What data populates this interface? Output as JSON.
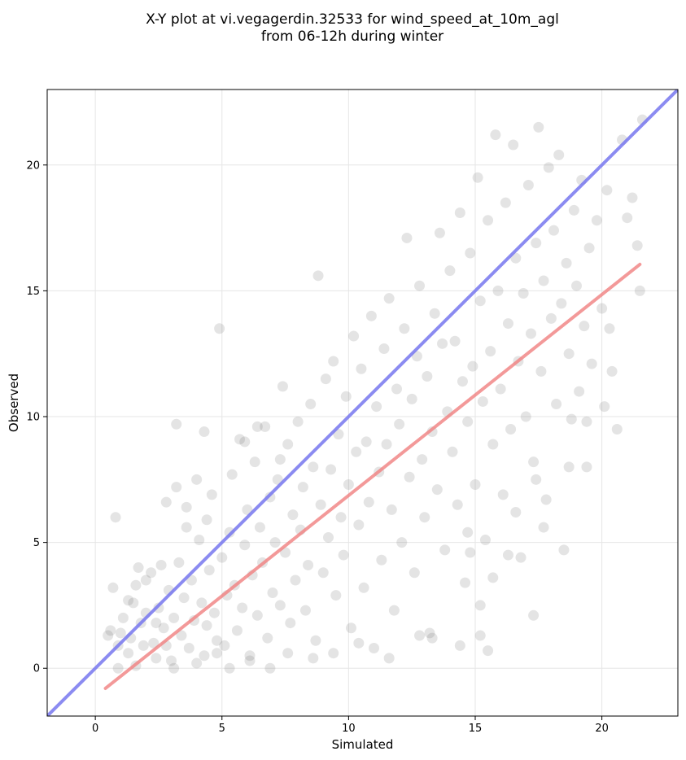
{
  "chart_data": {
    "type": "scatter",
    "title": "X-Y plot at vi.vegagerdin.32533 for wind_speed_at_10m_agl",
    "subtitle": "from 06-12h during winter",
    "xlabel": "Simulated",
    "ylabel": "Observed",
    "xlim": [
      -1.9,
      23.0
    ],
    "ylim": [
      -1.9,
      23.0
    ],
    "xticks": [
      0,
      5,
      10,
      15,
      20
    ],
    "yticks": [
      0,
      5,
      10,
      15,
      20
    ],
    "grid": true,
    "point_color": "#555555",
    "identity_line": {
      "x": [
        -1.9,
        23.0
      ],
      "y": [
        -1.9,
        23.0
      ],
      "color": "#7777ee"
    },
    "fit_line": {
      "x": [
        0.4,
        21.5
      ],
      "y": [
        -0.8,
        16.05
      ],
      "color": "#f08080"
    },
    "series": [
      {
        "values": [
          [
            0.8,
            6.0
          ],
          [
            0.7,
            3.2
          ],
          [
            0.6,
            1.5
          ],
          [
            0.9,
            0.9
          ],
          [
            1.0,
            1.4
          ],
          [
            1.1,
            2.0
          ],
          [
            0.5,
            1.3
          ],
          [
            1.3,
            0.6
          ],
          [
            1.4,
            1.2
          ],
          [
            1.5,
            2.6
          ],
          [
            1.6,
            3.3
          ],
          [
            1.7,
            4.0
          ],
          [
            1.8,
            1.8
          ],
          [
            1.9,
            0.9
          ],
          [
            2.0,
            2.2
          ],
          [
            2.2,
            3.8
          ],
          [
            2.3,
            1.0
          ],
          [
            2.4,
            0.4
          ],
          [
            2.5,
            2.4
          ],
          [
            2.6,
            4.1
          ],
          [
            2.7,
            1.6
          ],
          [
            2.8,
            0.9
          ],
          [
            2.9,
            3.1
          ],
          [
            3.0,
            0.3
          ],
          [
            3.1,
            2.0
          ],
          [
            3.2,
            7.2
          ],
          [
            3.3,
            4.2
          ],
          [
            3.4,
            1.3
          ],
          [
            3.5,
            2.8
          ],
          [
            3.6,
            5.6
          ],
          [
            3.7,
            0.8
          ],
          [
            3.8,
            3.5
          ],
          [
            3.9,
            1.9
          ],
          [
            4.0,
            7.5
          ],
          [
            4.1,
            5.1
          ],
          [
            4.2,
            2.6
          ],
          [
            4.3,
            0.5
          ],
          [
            4.4,
            1.7
          ],
          [
            4.5,
            3.9
          ],
          [
            4.6,
            6.9
          ],
          [
            4.7,
            2.2
          ],
          [
            4.8,
            1.1
          ],
          [
            4.9,
            13.5
          ],
          [
            5.0,
            4.4
          ],
          [
            5.1,
            0.9
          ],
          [
            5.2,
            2.9
          ],
          [
            5.3,
            5.4
          ],
          [
            5.4,
            7.7
          ],
          [
            5.5,
            3.3
          ],
          [
            5.6,
            1.5
          ],
          [
            5.7,
            9.1
          ],
          [
            5.8,
            2.4
          ],
          [
            5.9,
            4.9
          ],
          [
            6.0,
            6.3
          ],
          [
            6.1,
            0.5
          ],
          [
            6.2,
            3.7
          ],
          [
            6.3,
            8.2
          ],
          [
            6.4,
            2.1
          ],
          [
            6.5,
            5.6
          ],
          [
            6.6,
            4.2
          ],
          [
            6.7,
            9.6
          ],
          [
            6.8,
            1.2
          ],
          [
            6.9,
            6.8
          ],
          [
            7.0,
            3.0
          ],
          [
            7.1,
            5.0
          ],
          [
            7.2,
            7.5
          ],
          [
            7.3,
            2.5
          ],
          [
            7.4,
            11.2
          ],
          [
            7.5,
            4.6
          ],
          [
            7.6,
            8.9
          ],
          [
            7.7,
            1.8
          ],
          [
            7.8,
            6.1
          ],
          [
            7.9,
            3.5
          ],
          [
            8.0,
            9.8
          ],
          [
            8.1,
            5.5
          ],
          [
            8.2,
            7.2
          ],
          [
            8.3,
            2.3
          ],
          [
            8.4,
            4.1
          ],
          [
            8.5,
            10.5
          ],
          [
            8.6,
            8.0
          ],
          [
            8.7,
            1.1
          ],
          [
            8.8,
            15.6
          ],
          [
            8.9,
            6.5
          ],
          [
            9.0,
            3.8
          ],
          [
            9.1,
            11.5
          ],
          [
            9.2,
            5.2
          ],
          [
            9.3,
            7.9
          ],
          [
            9.4,
            12.2
          ],
          [
            9.5,
            2.9
          ],
          [
            9.6,
            9.3
          ],
          [
            9.7,
            6.0
          ],
          [
            9.8,
            4.5
          ],
          [
            9.9,
            10.8
          ],
          [
            10.0,
            7.3
          ],
          [
            10.1,
            1.6
          ],
          [
            10.2,
            13.2
          ],
          [
            10.3,
            8.6
          ],
          [
            10.4,
            5.7
          ],
          [
            10.5,
            11.9
          ],
          [
            10.6,
            3.2
          ],
          [
            10.7,
            9.0
          ],
          [
            10.8,
            6.6
          ],
          [
            10.9,
            14.0
          ],
          [
            11.0,
            0.8
          ],
          [
            11.1,
            10.4
          ],
          [
            11.2,
            7.8
          ],
          [
            11.3,
            4.3
          ],
          [
            11.4,
            12.7
          ],
          [
            11.5,
            8.9
          ],
          [
            11.6,
            14.7
          ],
          [
            11.7,
            6.3
          ],
          [
            11.8,
            2.3
          ],
          [
            11.9,
            11.1
          ],
          [
            12.0,
            9.7
          ],
          [
            12.1,
            5.0
          ],
          [
            12.2,
            13.5
          ],
          [
            12.3,
            17.1
          ],
          [
            12.4,
            7.6
          ],
          [
            12.5,
            10.7
          ],
          [
            12.6,
            3.8
          ],
          [
            12.7,
            12.4
          ],
          [
            12.8,
            15.2
          ],
          [
            12.9,
            8.3
          ],
          [
            13.0,
            6.0
          ],
          [
            13.1,
            11.6
          ],
          [
            13.2,
            1.4
          ],
          [
            13.3,
            9.4
          ],
          [
            13.4,
            14.1
          ],
          [
            13.5,
            7.1
          ],
          [
            13.6,
            17.3
          ],
          [
            13.7,
            12.9
          ],
          [
            13.8,
            4.7
          ],
          [
            13.9,
            10.2
          ],
          [
            14.0,
            15.8
          ],
          [
            14.1,
            8.6
          ],
          [
            14.2,
            13.0
          ],
          [
            14.3,
            6.5
          ],
          [
            14.4,
            18.1
          ],
          [
            14.5,
            11.4
          ],
          [
            14.6,
            3.4
          ],
          [
            14.7,
            9.8
          ],
          [
            14.8,
            16.5
          ],
          [
            14.9,
            12.0
          ],
          [
            15.0,
            7.3
          ],
          [
            15.1,
            19.5
          ],
          [
            15.2,
            14.6
          ],
          [
            15.3,
            10.6
          ],
          [
            15.4,
            5.1
          ],
          [
            15.5,
            17.8
          ],
          [
            15.6,
            12.6
          ],
          [
            15.7,
            8.9
          ],
          [
            15.8,
            21.2
          ],
          [
            15.9,
            15.0
          ],
          [
            16.0,
            11.1
          ],
          [
            16.1,
            6.9
          ],
          [
            16.2,
            18.5
          ],
          [
            16.3,
            13.7
          ],
          [
            16.4,
            9.5
          ],
          [
            16.5,
            20.8
          ],
          [
            16.6,
            16.3
          ],
          [
            16.7,
            12.2
          ],
          [
            16.8,
            4.4
          ],
          [
            16.9,
            14.9
          ],
          [
            17.0,
            10.0
          ],
          [
            17.1,
            19.2
          ],
          [
            17.2,
            13.3
          ],
          [
            17.3,
            8.2
          ],
          [
            17.4,
            16.9
          ],
          [
            17.5,
            21.5
          ],
          [
            17.6,
            11.8
          ],
          [
            17.7,
            15.4
          ],
          [
            17.8,
            6.7
          ],
          [
            17.9,
            19.9
          ],
          [
            18.0,
            13.9
          ],
          [
            18.1,
            17.4
          ],
          [
            18.2,
            10.5
          ],
          [
            18.3,
            20.4
          ],
          [
            18.4,
            14.5
          ],
          [
            18.5,
            4.7
          ],
          [
            18.6,
            16.1
          ],
          [
            18.7,
            12.5
          ],
          [
            18.8,
            9.9
          ],
          [
            18.9,
            18.2
          ],
          [
            19.0,
            15.2
          ],
          [
            19.1,
            11.0
          ],
          [
            19.2,
            19.4
          ],
          [
            19.3,
            13.6
          ],
          [
            19.4,
            8.0
          ],
          [
            19.5,
            16.7
          ],
          [
            19.6,
            12.1
          ],
          [
            19.8,
            17.8
          ],
          [
            20.0,
            14.3
          ],
          [
            20.1,
            10.4
          ],
          [
            20.2,
            19.0
          ],
          [
            20.4,
            11.8
          ],
          [
            20.6,
            9.5
          ],
          [
            20.8,
            21.0
          ],
          [
            21.0,
            17.9
          ],
          [
            21.2,
            18.7
          ],
          [
            21.4,
            16.8
          ],
          [
            21.5,
            15.0
          ],
          [
            21.6,
            21.8
          ],
          [
            20.3,
            13.5
          ],
          [
            3.2,
            9.7
          ],
          [
            4.3,
            9.4
          ],
          [
            2.0,
            3.5
          ],
          [
            5.9,
            9.0
          ],
          [
            6.4,
            9.6
          ],
          [
            7.3,
            8.3
          ],
          [
            2.8,
            6.6
          ],
          [
            3.6,
            6.4
          ],
          [
            4.4,
            5.9
          ],
          [
            1.3,
            2.7
          ],
          [
            0.9,
            0.0
          ],
          [
            1.6,
            0.1
          ],
          [
            2.4,
            1.8
          ],
          [
            3.1,
            0.0
          ],
          [
            4.0,
            0.2
          ],
          [
            4.8,
            0.6
          ],
          [
            5.3,
            0.0
          ],
          [
            6.1,
            0.3
          ],
          [
            6.9,
            0.0
          ],
          [
            7.6,
            0.6
          ],
          [
            8.6,
            0.4
          ],
          [
            9.4,
            0.6
          ],
          [
            10.4,
            1.0
          ],
          [
            11.6,
            0.4
          ],
          [
            12.8,
            1.3
          ],
          [
            13.3,
            1.2
          ],
          [
            14.4,
            0.9
          ],
          [
            15.5,
            0.7
          ],
          [
            15.2,
            1.3
          ],
          [
            15.2,
            2.5
          ],
          [
            15.7,
            3.6
          ],
          [
            16.3,
            4.5
          ],
          [
            14.8,
            4.6
          ],
          [
            14.7,
            5.4
          ],
          [
            16.6,
            6.2
          ],
          [
            17.3,
            2.1
          ],
          [
            17.7,
            5.6
          ],
          [
            17.4,
            7.5
          ],
          [
            18.7,
            8.0
          ],
          [
            19.4,
            9.8
          ]
        ]
      }
    ]
  }
}
